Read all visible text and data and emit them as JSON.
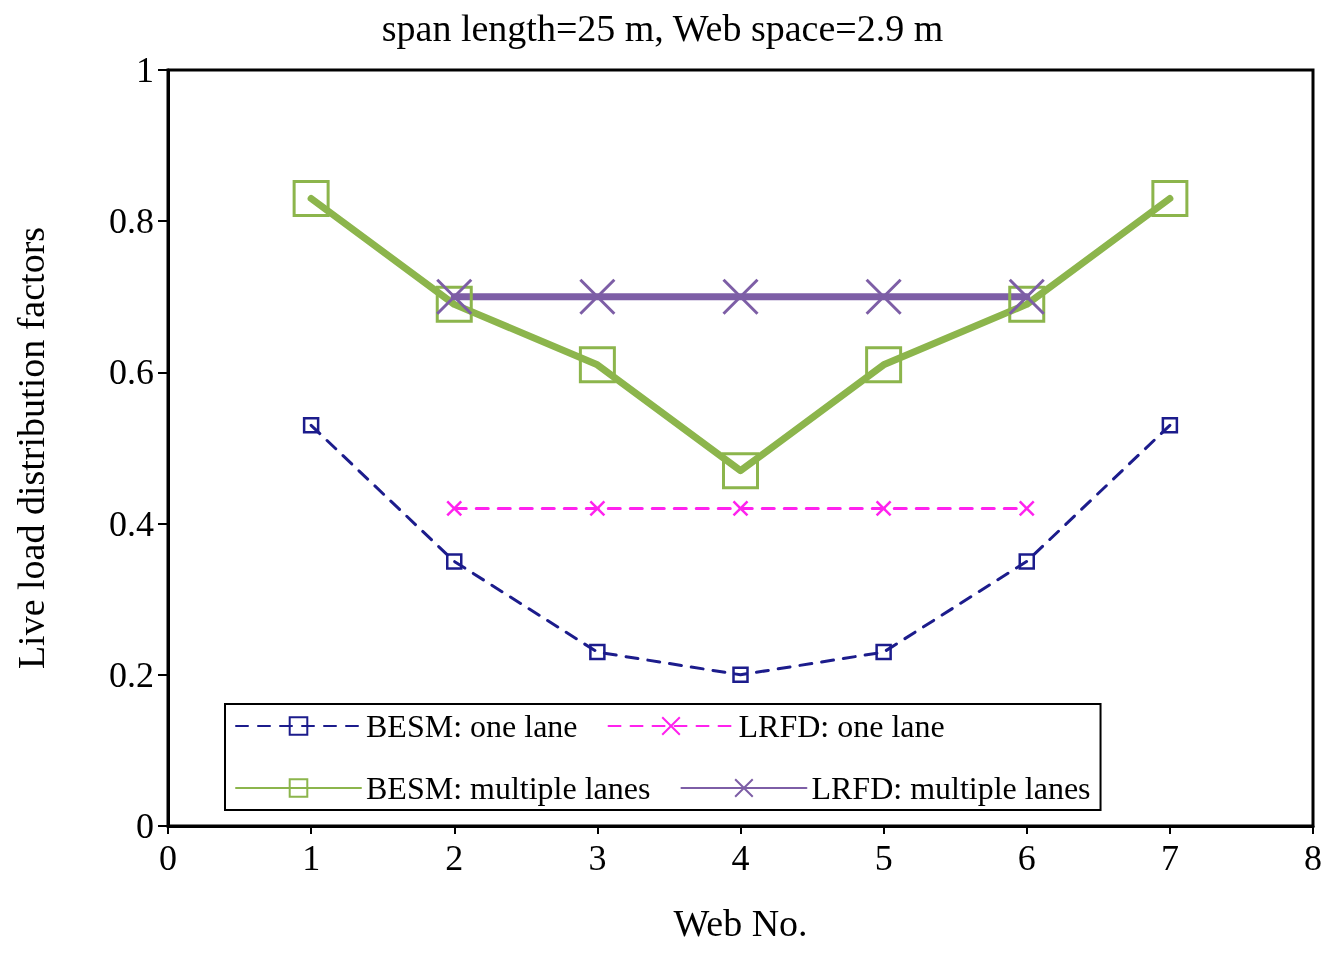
{
  "chart_data": {
    "type": "line",
    "title": "span length=25 m, Web space=2.9 m",
    "xlabel": "Web No.",
    "ylabel": "Live load distribution factors",
    "xlim": [
      0,
      8
    ],
    "xticks": [
      0,
      1,
      2,
      3,
      4,
      5,
      6,
      7,
      8
    ],
    "ylim": [
      0,
      1
    ],
    "yticks": [
      0,
      0.2,
      0.4,
      0.6,
      0.8,
      1
    ],
    "grid": false,
    "legend": "bottom",
    "series": [
      {
        "name": "BESM: one lane",
        "color": "#1c1c8c",
        "x": [
          1,
          2,
          3,
          4,
          5,
          6,
          7
        ],
        "values": [
          0.53,
          0.35,
          0.23,
          0.2,
          0.23,
          0.35,
          0.53
        ],
        "marker": "square",
        "line_style": "dashed"
      },
      {
        "name": "LRFD: one lane",
        "color": "#ff22ee",
        "x": [
          2,
          3,
          4,
          5,
          6
        ],
        "values": [
          0.42,
          0.42,
          0.42,
          0.42,
          0.42
        ],
        "marker": "cross",
        "line_style": "dashed"
      },
      {
        "name": "BESM: multiple lanes",
        "color": "#8cb54c",
        "x": [
          1,
          2,
          3,
          4,
          5,
          6,
          7
        ],
        "values": [
          0.83,
          0.69,
          0.61,
          0.47,
          0.61,
          0.69,
          0.83
        ],
        "marker": "square",
        "line_style": "solid"
      },
      {
        "name": "LRFD: multiple lanes",
        "color": "#7d5ea6",
        "x": [
          2,
          3,
          4,
          5,
          6
        ],
        "values": [
          0.7,
          0.7,
          0.7,
          0.7,
          0.7
        ],
        "marker": "cross",
        "line_style": "solid"
      }
    ]
  }
}
